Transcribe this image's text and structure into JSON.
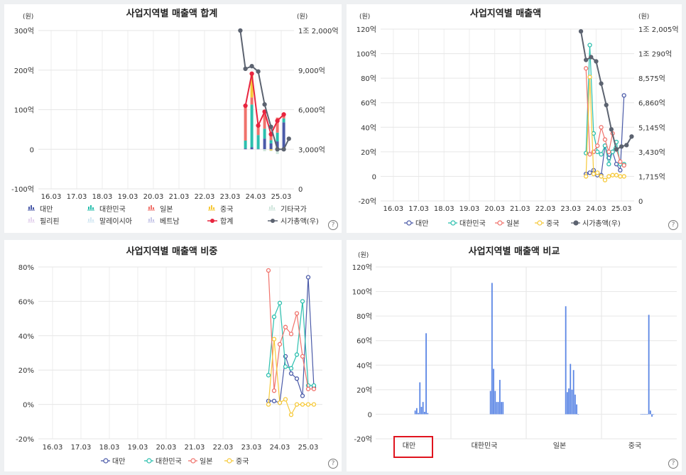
{
  "chart_data": [
    {
      "type": "bar",
      "title": "사업지역별 매출액 합계",
      "y_unit": "(원)",
      "y2_unit": "(원)",
      "x_ticks": [
        "16.03",
        "17.03",
        "18.03",
        "19.03",
        "20.03",
        "21.03",
        "22.03",
        "23.03",
        "24.03",
        "25.03"
      ],
      "y_ticks": [
        "300억",
        "200억",
        "100억",
        "0",
        "-100억"
      ],
      "y2_ticks": [
        "1조 2,000억",
        "9,000억",
        "6,000억",
        "3,000억",
        "0"
      ],
      "ylim": [
        -100,
        300
      ],
      "y2lim": [
        0,
        12000
      ],
      "grid": true,
      "legend_position": "bottom",
      "legend": [
        "대만",
        "대한민국",
        "일본",
        "중국",
        "기타국가",
        "필리핀",
        "말레이시아",
        "베트남",
        "합계",
        "시가총액(우)"
      ],
      "colors": [
        "#4a5aa8",
        "#2bbfae",
        "#f0726b",
        "#f6c93a",
        "#cfe6dc",
        "#e4d4ee",
        "#d4e8f3",
        "#c8c8e8",
        "#e8253f",
        "#5c6370"
      ],
      "x": [
        23.6,
        23.85,
        24.1,
        24.35,
        24.6,
        24.85,
        25.1
      ],
      "stacks": [
        {
          "name": "대만",
          "values": [
            2,
            5,
            1,
            27,
            15,
            20,
            68
          ]
        },
        {
          "name": "대한민국",
          "values": [
            20,
            108,
            35,
            25,
            8,
            22,
            10
          ]
        },
        {
          "name": "일본",
          "values": [
            88,
            18,
            25,
            40,
            20,
            38,
            9
          ]
        },
        {
          "name": "중국",
          "values": [
            0,
            60,
            2,
            3,
            -3,
            0,
            0
          ]
        },
        {
          "name": "기타국가",
          "values": [
            0,
            0,
            0,
            -5,
            -2,
            -12,
            0
          ]
        }
      ],
      "total": {
        "name": "합계",
        "values": [
          110,
          191,
          60,
          95,
          38,
          72,
          88
        ]
      },
      "market_cap": {
        "name": "시가총액(우)",
        "x": [
          23.4,
          23.6,
          23.85,
          24.1,
          24.35,
          24.6,
          24.85,
          25.1,
          25.3
        ],
        "values": [
          12000,
          9100,
          9300,
          8900,
          6400,
          4700,
          3000,
          3000,
          3800
        ]
      }
    },
    {
      "type": "line",
      "title": "사업지역별 매출액",
      "y_unit": "(원)",
      "y2_unit": "(원)",
      "x_ticks": [
        "16.03",
        "17.03",
        "18.03",
        "19.03",
        "20.03",
        "21.03",
        "22.03",
        "23.03",
        "24.03",
        "25.03"
      ],
      "y_ticks": [
        "120억",
        "100억",
        "80억",
        "60억",
        "40억",
        "20억",
        "0",
        "-20억"
      ],
      "y2_ticks": [
        "1조 2,005억",
        "1조 290억",
        "8,575억",
        "6,860억",
        "5,145억",
        "3,430억",
        "1,715억",
        "0"
      ],
      "ylim": [
        -20,
        120
      ],
      "y2lim": [
        0,
        12005
      ],
      "grid": true,
      "legend_position": "bottom",
      "legend": [
        "대만",
        "대한민국",
        "일본",
        "중국",
        "시가총액(우)"
      ],
      "colors": [
        "#4a5aa8",
        "#2bbfae",
        "#f0726b",
        "#f6c93a",
        "#5c6370"
      ],
      "series": [
        {
          "name": "대만",
          "x": [
            23.6,
            23.75,
            23.9,
            24.05,
            24.2,
            24.35,
            24.5,
            24.65,
            24.8,
            24.95,
            25.1
          ],
          "values": [
            2,
            3,
            5,
            1,
            1,
            25,
            15,
            20,
            10,
            5,
            66
          ]
        },
        {
          "name": "대한민국",
          "x": [
            23.6,
            23.75,
            23.9,
            24.05,
            24.2,
            24.35,
            24.5,
            24.65,
            24.8,
            24.95,
            25.1
          ],
          "values": [
            19,
            107,
            35,
            20,
            18,
            25,
            10,
            20,
            28,
            10,
            10
          ]
        },
        {
          "name": "일본",
          "x": [
            23.6,
            23.75,
            23.9,
            24.05,
            24.2,
            24.35,
            24.5,
            24.65,
            24.8,
            24.95,
            25.1
          ],
          "values": [
            88,
            18,
            20,
            25,
            40,
            30,
            20,
            35,
            22,
            12,
            9
          ]
        },
        {
          "name": "중국",
          "x": [
            23.6,
            23.75,
            23.9,
            24.05,
            24.2,
            24.35,
            24.5,
            24.65,
            24.8,
            24.95,
            25.1
          ],
          "values": [
            0,
            81,
            2,
            3,
            0,
            -3,
            0,
            1,
            1,
            0,
            0
          ]
        },
        {
          "name": "시가총액(우)",
          "x": [
            23.4,
            23.6,
            23.8,
            24.0,
            24.2,
            24.4,
            24.6,
            24.8,
            25.0,
            25.2,
            25.4
          ],
          "values": [
            11850,
            9850,
            10050,
            9750,
            8200,
            6700,
            5000,
            3600,
            3800,
            3900,
            4500
          ]
        }
      ]
    },
    {
      "type": "line",
      "title": "사업지역별 매출액 비중",
      "x_ticks": [
        "16.03",
        "17.03",
        "18.03",
        "19.03",
        "20.03",
        "21.03",
        "22.03",
        "23.03",
        "24.03",
        "25.03"
      ],
      "y_ticks": [
        "80%",
        "60%",
        "40%",
        "20%",
        "0%",
        "-20%"
      ],
      "ylim": [
        -20,
        80
      ],
      "grid": true,
      "legend_position": "bottom",
      "legend": [
        "대만",
        "대한민국",
        "일본",
        "중국"
      ],
      "colors": [
        "#4a5aa8",
        "#2bbfae",
        "#f0726b",
        "#f6c93a"
      ],
      "series": [
        {
          "name": "대만",
          "x": [
            23.6,
            23.8,
            24.0,
            24.2,
            24.4,
            24.6,
            24.8,
            25.0,
            25.2
          ],
          "values": [
            2,
            2,
            1,
            28,
            18,
            15,
            5,
            74,
            10
          ]
        },
        {
          "name": "대한민국",
          "x": [
            23.6,
            23.8,
            24.0,
            24.2,
            24.4,
            24.6,
            24.8,
            25.0,
            25.2
          ],
          "values": [
            17,
            51,
            59,
            22,
            21,
            29,
            60,
            11,
            11
          ]
        },
        {
          "name": "일본",
          "x": [
            23.6,
            23.8,
            24.0,
            24.2,
            24.4,
            24.6,
            24.8,
            25.0,
            25.2
          ],
          "values": [
            78,
            8,
            35,
            45,
            41,
            53,
            28,
            9,
            9
          ]
        },
        {
          "name": "중국",
          "x": [
            23.6,
            23.8,
            24.0,
            24.2,
            24.4,
            24.6,
            24.8,
            25.0,
            25.2
          ],
          "values": [
            0,
            38,
            1,
            3,
            -6,
            0,
            0,
            0,
            0
          ]
        }
      ]
    },
    {
      "type": "bar",
      "title": "사업지역별 매출액 비교",
      "y_unit": "(원)",
      "categories": [
        "대만",
        "대한민국",
        "일본",
        "중국"
      ],
      "y_ticks": [
        "120억",
        "100억",
        "80억",
        "60억",
        "40억",
        "20억",
        "0",
        "-20억"
      ],
      "ylim": [
        -20,
        120
      ],
      "grid": true,
      "selected_category": "대만",
      "color": "#5b86e5",
      "groups": [
        {
          "name": "대만",
          "values": [
            3,
            5,
            1,
            26,
            6,
            10,
            2,
            66,
            1
          ]
        },
        {
          "name": "대한민국",
          "values": [
            19,
            107,
            37,
            19,
            10,
            10,
            28,
            10,
            10
          ]
        },
        {
          "name": "일본",
          "values": [
            88,
            18,
            21,
            41,
            20,
            36,
            16,
            8,
            0
          ]
        },
        {
          "name": "중국",
          "values": [
            0,
            0,
            0,
            0,
            0,
            81,
            3,
            -2,
            0
          ]
        }
      ]
    }
  ]
}
